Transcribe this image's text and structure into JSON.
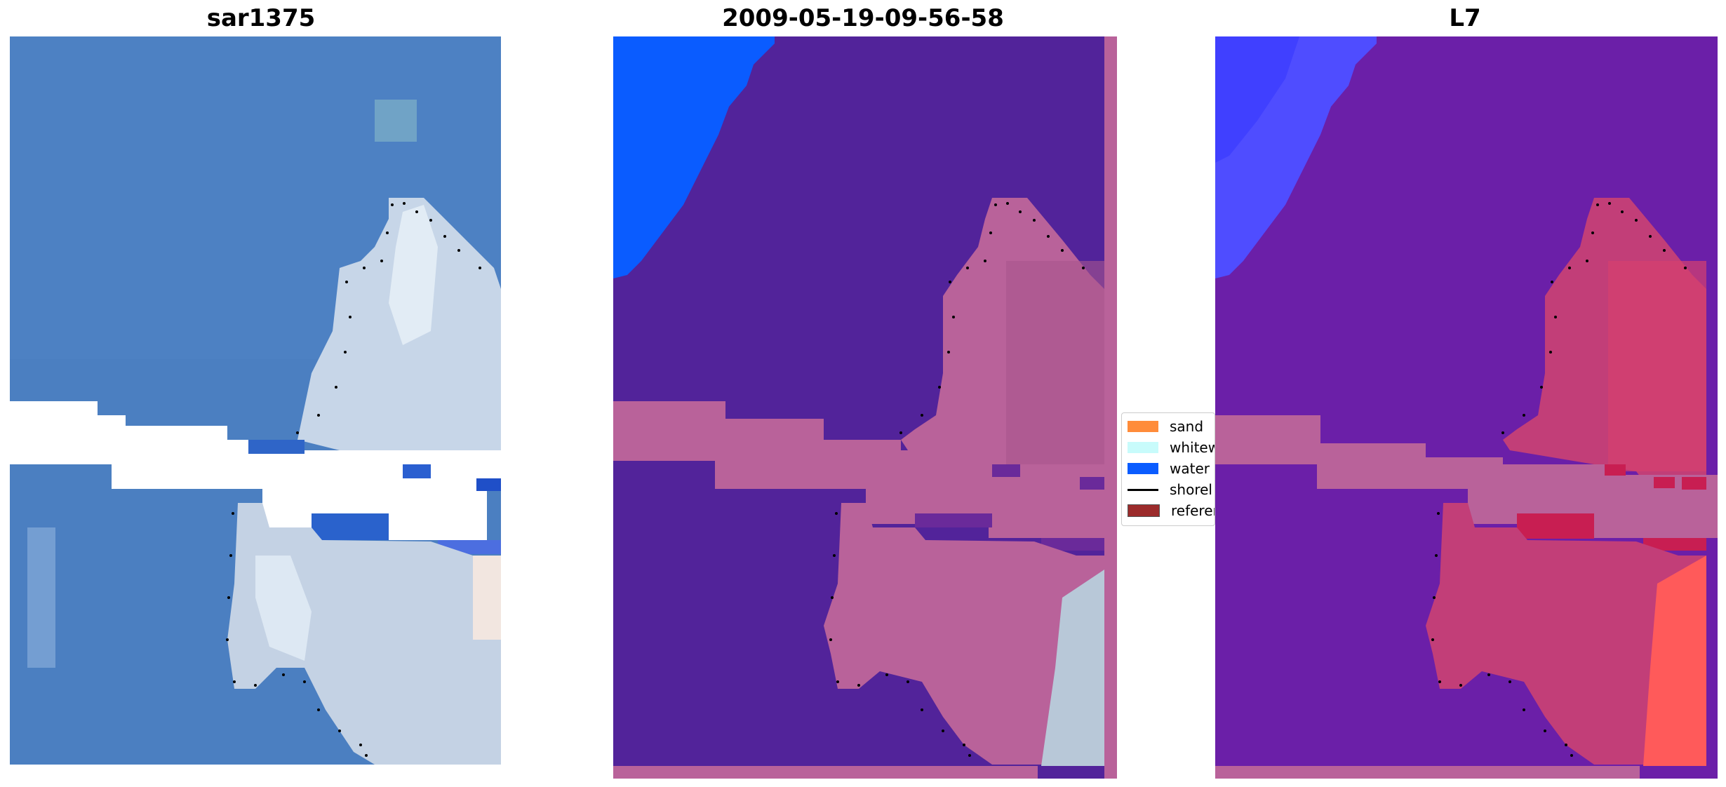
{
  "panels": [
    {
      "title": "sar1375"
    },
    {
      "title": "2009-05-19-09-56-58"
    },
    {
      "title": "L7"
    }
  ],
  "legend": {
    "items": [
      {
        "label": "sand",
        "color": "#ff8c3a"
      },
      {
        "label": "whitewater",
        "color": "#c8fbfb"
      },
      {
        "label": "water",
        "color": "#0a5cff"
      },
      {
        "label": "shorel",
        "color": "#000000"
      },
      {
        "label": "referen",
        "color": "#9b2b2b"
      }
    ]
  },
  "colors": {
    "ocean_rgb": "#4b7fc1",
    "sand_rgb": "#c9d8e6",
    "class_water": "#52239a",
    "class_land": "#b9629a",
    "class_deepwater": "#0a5cff",
    "l7_water": "#6b1fa8",
    "l7_land": "#d6406e",
    "l7_ocean": "#4f4dff",
    "l7_land_bright": "#ff5a5a"
  }
}
